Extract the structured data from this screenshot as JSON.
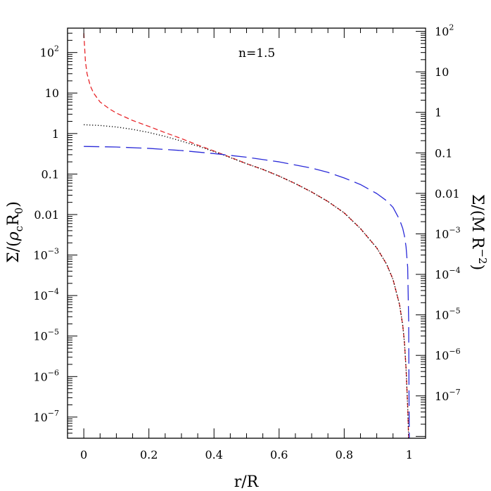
{
  "chart_data": {
    "type": "line",
    "annotation": "n=1.5",
    "xlabel": "r/R",
    "ylabel_left": "Σ/(ρ_c R_0)",
    "ylabel_right": "Σ/(M R^-2)",
    "xlim": [
      -0.05,
      1.05
    ],
    "ylim_left": [
      3e-08,
      400
    ],
    "yscale": "log",
    "grid": false,
    "x_ticks": [
      {
        "value": 0,
        "label": "0"
      },
      {
        "value": 0.2,
        "label": "0.2"
      },
      {
        "value": 0.4,
        "label": "0.4"
      },
      {
        "value": 0.6,
        "label": "0.6"
      },
      {
        "value": 0.8,
        "label": "0.8"
      },
      {
        "value": 1.0,
        "label": "1"
      }
    ],
    "y_ticks_left": [
      {
        "value": 100,
        "base": "10",
        "exp": "2"
      },
      {
        "value": 10,
        "base": "10",
        "exp": ""
      },
      {
        "value": 1,
        "base": "1",
        "exp": ""
      },
      {
        "value": 0.1,
        "base": "0.1",
        "exp": ""
      },
      {
        "value": 0.01,
        "base": "0.01",
        "exp": ""
      },
      {
        "value": 0.001,
        "base": "10",
        "exp": "−3"
      },
      {
        "value": 0.0001,
        "base": "10",
        "exp": "−4"
      },
      {
        "value": 1e-05,
        "base": "10",
        "exp": "−5"
      },
      {
        "value": 1e-06,
        "base": "10",
        "exp": "−6"
      },
      {
        "value": 1e-07,
        "base": "10",
        "exp": "−7"
      }
    ],
    "right_axis_factor": 0.3,
    "y_ticks_right": [
      {
        "value": 100,
        "base": "10",
        "exp": "2"
      },
      {
        "value": 10,
        "base": "10",
        "exp": ""
      },
      {
        "value": 1,
        "base": "1",
        "exp": ""
      },
      {
        "value": 0.1,
        "base": "0.1",
        "exp": ""
      },
      {
        "value": 0.01,
        "base": "0.01",
        "exp": ""
      },
      {
        "value": 0.001,
        "base": "10",
        "exp": "−3"
      },
      {
        "value": 0.0001,
        "base": "10",
        "exp": "−4"
      },
      {
        "value": 1e-05,
        "base": "10",
        "exp": "−5"
      },
      {
        "value": 1e-06,
        "base": "10",
        "exp": "−6"
      },
      {
        "value": 1e-07,
        "base": "10",
        "exp": "−7"
      }
    ],
    "series": [
      {
        "id": "red-dashed",
        "color": "#e8262a",
        "style": "short-dash",
        "axis": "left",
        "points": [
          [
            0.0,
            300
          ],
          [
            0.005,
            60
          ],
          [
            0.01,
            30
          ],
          [
            0.02,
            15
          ],
          [
            0.03,
            10
          ],
          [
            0.05,
            6
          ],
          [
            0.08,
            4
          ],
          [
            0.1,
            3.2
          ],
          [
            0.15,
            2.1
          ],
          [
            0.2,
            1.5
          ],
          [
            0.25,
            1.05
          ],
          [
            0.3,
            0.75
          ],
          [
            0.35,
            0.52
          ],
          [
            0.4,
            0.37
          ],
          [
            0.45,
            0.26
          ],
          [
            0.5,
            0.18
          ],
          [
            0.55,
            0.13
          ],
          [
            0.6,
            0.089
          ],
          [
            0.65,
            0.058
          ],
          [
            0.7,
            0.036
          ],
          [
            0.75,
            0.021
          ],
          [
            0.8,
            0.011
          ],
          [
            0.85,
            0.0045
          ],
          [
            0.9,
            0.0015
          ],
          [
            0.93,
            0.0006
          ],
          [
            0.95,
            0.00025
          ],
          [
            0.97,
            6e-05
          ],
          [
            0.98,
            1.8e-05
          ],
          [
            0.985,
            7e-06
          ],
          [
            0.99,
            1.6e-06
          ],
          [
            0.995,
            1.8e-07
          ],
          [
            0.998,
            3e-08
          ]
        ]
      },
      {
        "id": "black-dotted",
        "color": "#000000",
        "style": "dotted",
        "axis": "left",
        "points": [
          [
            0.0,
            1.65
          ],
          [
            0.05,
            1.58
          ],
          [
            0.1,
            1.45
          ],
          [
            0.15,
            1.27
          ],
          [
            0.2,
            1.06
          ],
          [
            0.25,
            0.85
          ],
          [
            0.3,
            0.65
          ],
          [
            0.35,
            0.49
          ],
          [
            0.4,
            0.36
          ],
          [
            0.45,
            0.255
          ],
          [
            0.5,
            0.18
          ],
          [
            0.55,
            0.13
          ],
          [
            0.6,
            0.089
          ],
          [
            0.65,
            0.058
          ],
          [
            0.7,
            0.036
          ],
          [
            0.75,
            0.021
          ],
          [
            0.8,
            0.011
          ],
          [
            0.85,
            0.0045
          ],
          [
            0.9,
            0.0015
          ],
          [
            0.93,
            0.0006
          ],
          [
            0.95,
            0.00025
          ],
          [
            0.97,
            6e-05
          ],
          [
            0.98,
            1.8e-05
          ],
          [
            0.985,
            7e-06
          ],
          [
            0.99,
            1.6e-06
          ],
          [
            0.995,
            1.8e-07
          ],
          [
            0.998,
            3e-08
          ]
        ]
      },
      {
        "id": "blue-long-dashed",
        "color": "#2a2ad8",
        "style": "long-dash",
        "axis": "left",
        "points": [
          [
            0.0,
            0.48
          ],
          [
            0.1,
            0.465
          ],
          [
            0.2,
            0.43
          ],
          [
            0.3,
            0.38
          ],
          [
            0.4,
            0.32
          ],
          [
            0.5,
            0.26
          ],
          [
            0.6,
            0.2
          ],
          [
            0.7,
            0.14
          ],
          [
            0.75,
            0.11
          ],
          [
            0.8,
            0.08
          ],
          [
            0.85,
            0.055
          ],
          [
            0.9,
            0.033
          ],
          [
            0.93,
            0.022
          ],
          [
            0.95,
            0.015
          ],
          [
            0.97,
            0.0075
          ],
          [
            0.98,
            0.0045
          ],
          [
            0.985,
            0.003
          ],
          [
            0.99,
            0.0016
          ],
          [
            0.995,
            0.0005
          ],
          [
            0.998,
            2.5e-05
          ],
          [
            0.999,
            5e-07
          ],
          [
            1.0,
            3e-08
          ]
        ]
      }
    ]
  }
}
